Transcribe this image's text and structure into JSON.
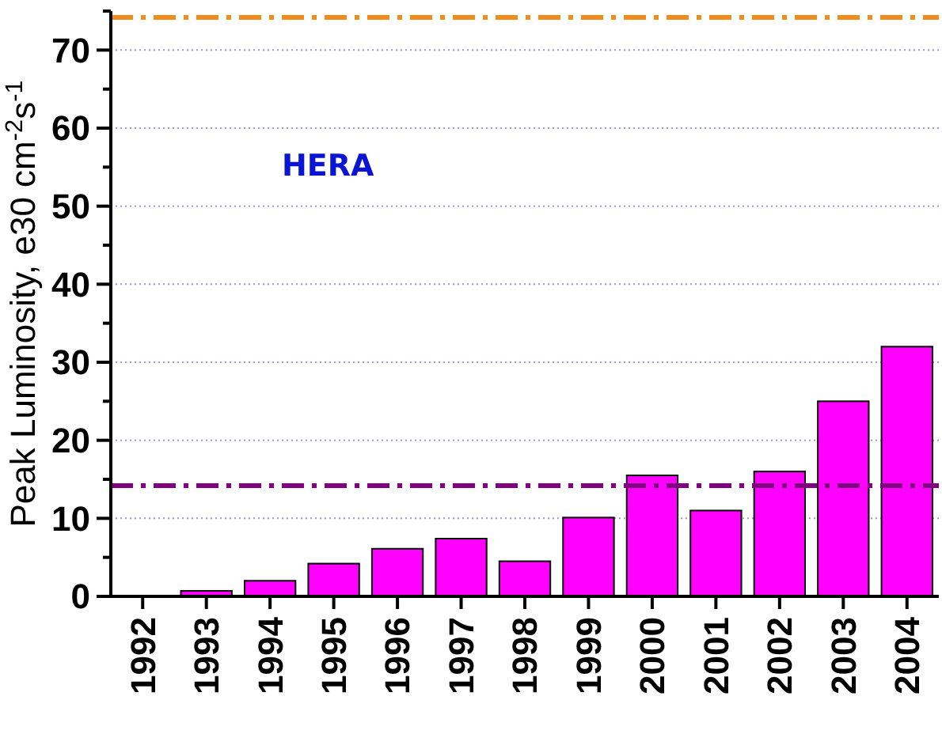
{
  "chart_data": {
    "type": "bar",
    "ylabel": "Peak Luminosity, e30 cm$^{-2}$s$^{-1}$",
    "categories": [
      "1992",
      "1993",
      "1994",
      "1995",
      "1996",
      "1997",
      "1998",
      "1999",
      "2000",
      "2001",
      "2002",
      "2003",
      "2004"
    ],
    "series": [
      {
        "color": "#ff00ff",
        "values": [
          0.1,
          0.7,
          2,
          4.2,
          6.1,
          7.4,
          4.5,
          10.1,
          15.5,
          11,
          16,
          25,
          32
        ]
      }
    ],
    "ref_lines": [
      {
        "axis": "y",
        "value": 14.2,
        "color": "#800080",
        "line_style": "dashed"
      },
      {
        "axis": "y",
        "value": 74.2,
        "color": "#f08c1e",
        "line_style": "dashed"
      }
    ],
    "ylim": [
      0,
      75
    ],
    "yticks": [
      0,
      {
        "value": 5,
        "label": null
      },
      10,
      {
        "value": 15,
        "label": null
      },
      20,
      {
        "value": 25,
        "label": null
      },
      30,
      {
        "value": 35,
        "label": null
      },
      40,
      {
        "value": 45,
        "label": null
      },
      50,
      {
        "value": 55,
        "label": null
      },
      60,
      {
        "value": 65,
        "label": null
      },
      70,
      {
        "value": 75,
        "label": null
      }
    ],
    "grid": "y",
    "annotations": [
      "HERA"
    ]
  }
}
